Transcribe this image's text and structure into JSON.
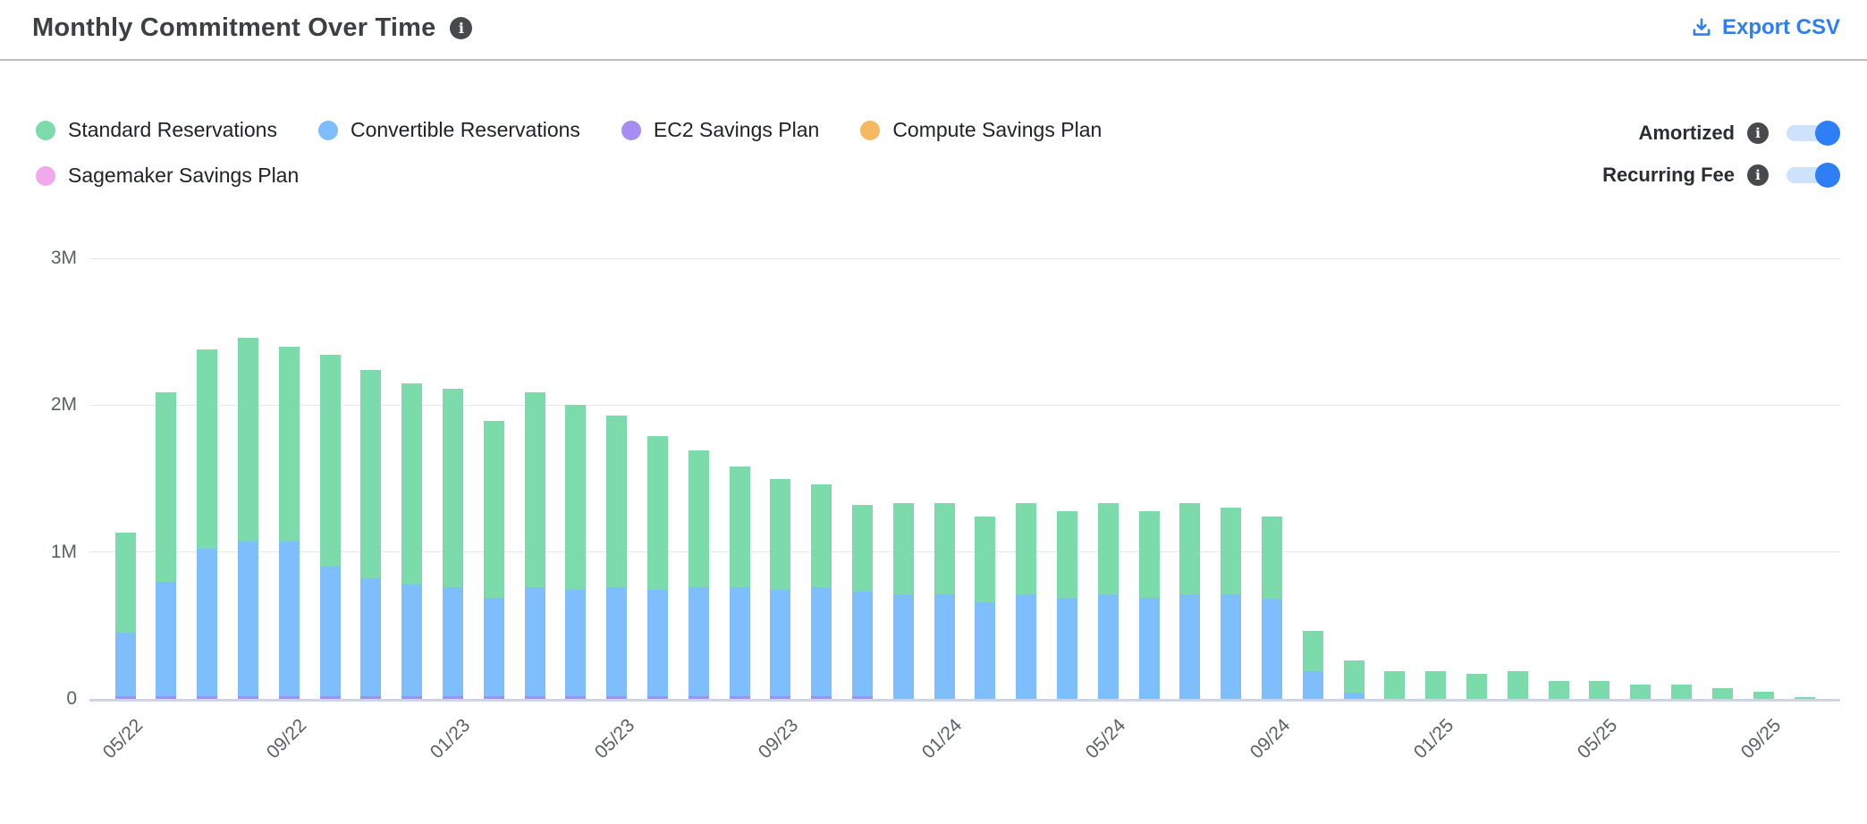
{
  "header": {
    "title": "Monthly Commitment Over Time",
    "export_label": "Export CSV"
  },
  "legend": [
    {
      "label": "Standard Reservations",
      "color": "#7bdbab"
    },
    {
      "label": "Convertible Reservations",
      "color": "#7ebefc"
    },
    {
      "label": "EC2 Savings Plan",
      "color": "#a78df2"
    },
    {
      "label": "Compute Savings Plan",
      "color": "#f4b961"
    },
    {
      "label": "Sagemaker Savings Plan",
      "color": "#f0a9ef"
    }
  ],
  "toggles": [
    {
      "label": "Amortized",
      "state": "on"
    },
    {
      "label": "Recurring Fee",
      "state": "on"
    }
  ],
  "colors": {
    "accent_blue": "#2e7ef5",
    "toggle_track": "#cfe2fc",
    "info_icon_bg": "#48494b",
    "gridline": "#e9e9e9",
    "axis_line": "#ccd4e6",
    "axis_text": "#5d6063",
    "title_text": "#3d3f43"
  },
  "chart_data": {
    "type": "bar",
    "stacked": true,
    "title": "Monthly Commitment Over Time",
    "xlabel": "",
    "ylabel": "",
    "value_unit": "millions",
    "ylim_m": [
      0,
      3
    ],
    "y_ticks": [
      "0",
      "1M",
      "2M",
      "3M"
    ],
    "x_tick_labels": [
      "05/22",
      "09/22",
      "01/23",
      "05/23",
      "09/23",
      "01/24",
      "05/24",
      "09/24",
      "01/25",
      "05/25",
      "09/25"
    ],
    "categories": [
      "05/22",
      "06/22",
      "07/22",
      "08/22",
      "09/22",
      "10/22",
      "11/22",
      "12/22",
      "01/23",
      "02/23",
      "03/23",
      "04/23",
      "05/23",
      "06/23",
      "07/23",
      "08/23",
      "09/23",
      "10/23",
      "11/23",
      "12/23",
      "01/24",
      "02/24",
      "03/24",
      "04/24",
      "05/24",
      "06/24",
      "07/24",
      "08/24",
      "09/24",
      "10/24",
      "11/24",
      "12/24",
      "01/25",
      "02/25",
      "03/25",
      "04/25",
      "05/25",
      "06/25",
      "07/25",
      "08/25",
      "09/25",
      "10/25"
    ],
    "series": [
      {
        "name": "Standard Reservations",
        "color": "#7bdbab",
        "values_m": [
          0.68,
          1.29,
          1.36,
          1.39,
          1.33,
          1.44,
          1.42,
          1.37,
          1.35,
          1.2,
          1.33,
          1.26,
          1.17,
          1.05,
          0.93,
          0.82,
          0.76,
          0.7,
          0.59,
          0.62,
          0.62,
          0.58,
          0.62,
          0.59,
          0.62,
          0.59,
          0.62,
          0.59,
          0.56,
          0.27,
          0.22,
          0.19,
          0.19,
          0.17,
          0.19,
          0.12,
          0.12,
          0.1,
          0.1,
          0.07,
          0.05,
          0.015
        ]
      },
      {
        "name": "Convertible Reservations",
        "color": "#7ebefc",
        "values_m": [
          0.43,
          0.78,
          1.0,
          1.05,
          1.05,
          0.88,
          0.8,
          0.76,
          0.74,
          0.67,
          0.74,
          0.72,
          0.74,
          0.72,
          0.74,
          0.74,
          0.72,
          0.74,
          0.71,
          0.71,
          0.71,
          0.66,
          0.71,
          0.69,
          0.71,
          0.69,
          0.71,
          0.71,
          0.68,
          0.19,
          0.04,
          0,
          0,
          0,
          0,
          0,
          0,
          0,
          0,
          0,
          0,
          0
        ]
      },
      {
        "name": "EC2 Savings Plan",
        "color": "#a78df2",
        "values_m": [
          0.02,
          0.02,
          0.02,
          0.02,
          0.02,
          0.02,
          0.02,
          0.02,
          0.02,
          0.02,
          0.02,
          0.02,
          0.02,
          0.02,
          0.02,
          0.02,
          0.02,
          0.02,
          0.02,
          0,
          0,
          0,
          0,
          0,
          0,
          0,
          0,
          0,
          0,
          0,
          0,
          0,
          0,
          0,
          0,
          0,
          0,
          0,
          0,
          0,
          0,
          0
        ]
      },
      {
        "name": "Compute Savings Plan",
        "color": "#f4b961",
        "values_m": [
          0,
          0,
          0,
          0,
          0,
          0,
          0,
          0,
          0,
          0,
          0,
          0,
          0,
          0,
          0,
          0,
          0,
          0,
          0,
          0,
          0,
          0,
          0,
          0,
          0,
          0,
          0,
          0,
          0,
          0,
          0,
          0,
          0,
          0,
          0,
          0,
          0,
          0,
          0,
          0,
          0,
          0
        ]
      },
      {
        "name": "Sagemaker Savings Plan",
        "color": "#f0a9ef",
        "values_m": [
          0,
          0,
          0,
          0,
          0,
          0,
          0,
          0,
          0,
          0,
          0,
          0,
          0,
          0,
          0,
          0,
          0,
          0,
          0,
          0,
          0,
          0,
          0,
          0,
          0,
          0,
          0,
          0,
          0,
          0,
          0,
          0,
          0,
          0,
          0,
          0,
          0,
          0,
          0,
          0,
          0,
          0
        ]
      }
    ],
    "legend_position": "top-left",
    "grid": true
  }
}
